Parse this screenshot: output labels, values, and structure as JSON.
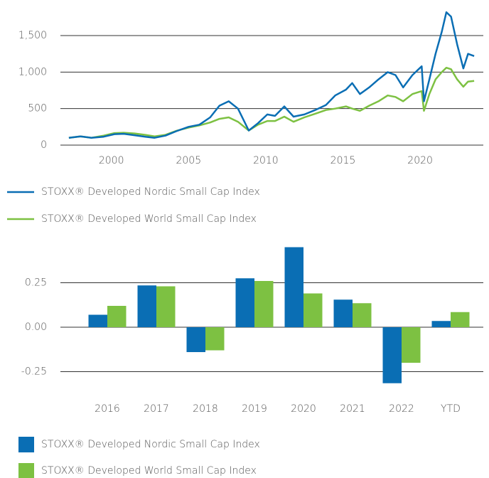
{
  "chart_data": [
    {
      "type": "line",
      "x": [
        1997.25,
        1998,
        1998.7,
        1999.5,
        2000.2,
        2000.8,
        2001.5,
        2002.2,
        2002.8,
        2003.5,
        2004.2,
        2005,
        2005.7,
        2006.4,
        2007,
        2007.6,
        2008.2,
        2008.9,
        2009.5,
        2010.1,
        2010.6,
        2011.2,
        2011.8,
        2012.5,
        2013.2,
        2013.9,
        2014.5,
        2015.2,
        2015.6,
        2016.1,
        2016.7,
        2017.3,
        2017.9,
        2018.4,
        2018.9,
        2019.5,
        2020.1,
        2020.25,
        2020.6,
        2021,
        2021.4,
        2021.7,
        2022,
        2022.4,
        2022.8,
        2023.1,
        2023.5
      ],
      "series": [
        {
          "name": "STOXX® Developed Nordic Small Cap Index",
          "color": "#0a6eb4",
          "values": [
            100,
            120,
            100,
            115,
            150,
            155,
            135,
            115,
            100,
            130,
            190,
            250,
            280,
            380,
            540,
            600,
            500,
            200,
            300,
            420,
            400,
            530,
            390,
            420,
            480,
            550,
            680,
            760,
            850,
            700,
            790,
            900,
            1000,
            960,
            790,
            960,
            1080,
            600,
            900,
            1250,
            1550,
            1820,
            1760,
            1380,
            1050,
            1250,
            1220
          ]
        },
        {
          "name": "STOXX® Developed World Small Cap Index",
          "color": "#7dc142",
          "values": [
            100,
            120,
            100,
            130,
            165,
            170,
            160,
            140,
            120,
            140,
            195,
            240,
            270,
            310,
            360,
            380,
            320,
            200,
            280,
            330,
            330,
            390,
            320,
            380,
            430,
            480,
            500,
            530,
            500,
            470,
            540,
            600,
            680,
            660,
            600,
            700,
            740,
            470,
            700,
            900,
            1000,
            1060,
            1040,
            900,
            800,
            870,
            880
          ]
        }
      ],
      "xlim": [
        1996.7,
        2024
      ],
      "xticks": [
        2000,
        2005,
        2010,
        2015,
        2020
      ],
      "ylim": [
        0,
        1900
      ],
      "yticks": [
        0,
        500,
        {
          "value": 1000,
          "label": "1,000"
        },
        {
          "value": 1500,
          "label": "1,500"
        }
      ],
      "grid": true
    },
    {
      "type": "bar",
      "categories": [
        "2016",
        "2017",
        "2018",
        "2019",
        "2020",
        "2021",
        "2022",
        "YTD"
      ],
      "series": [
        {
          "name": "STOXX® Developed Nordic Small Cap Index",
          "color": "#0a6eb4",
          "values": [
            0.07,
            0.235,
            -0.14,
            0.275,
            0.45,
            0.155,
            -0.315,
            0.035
          ]
        },
        {
          "name": "STOXX® Developed World Small Cap Index",
          "color": "#7dc142",
          "values": [
            0.12,
            0.23,
            -0.13,
            0.26,
            0.19,
            0.135,
            -0.2,
            0.085
          ]
        }
      ],
      "ylim": [
        -0.34,
        0.46
      ],
      "yticks": [
        -0.25,
        {
          "value": 0,
          "label": "0.00"
        },
        0.25
      ],
      "grid": true
    }
  ]
}
